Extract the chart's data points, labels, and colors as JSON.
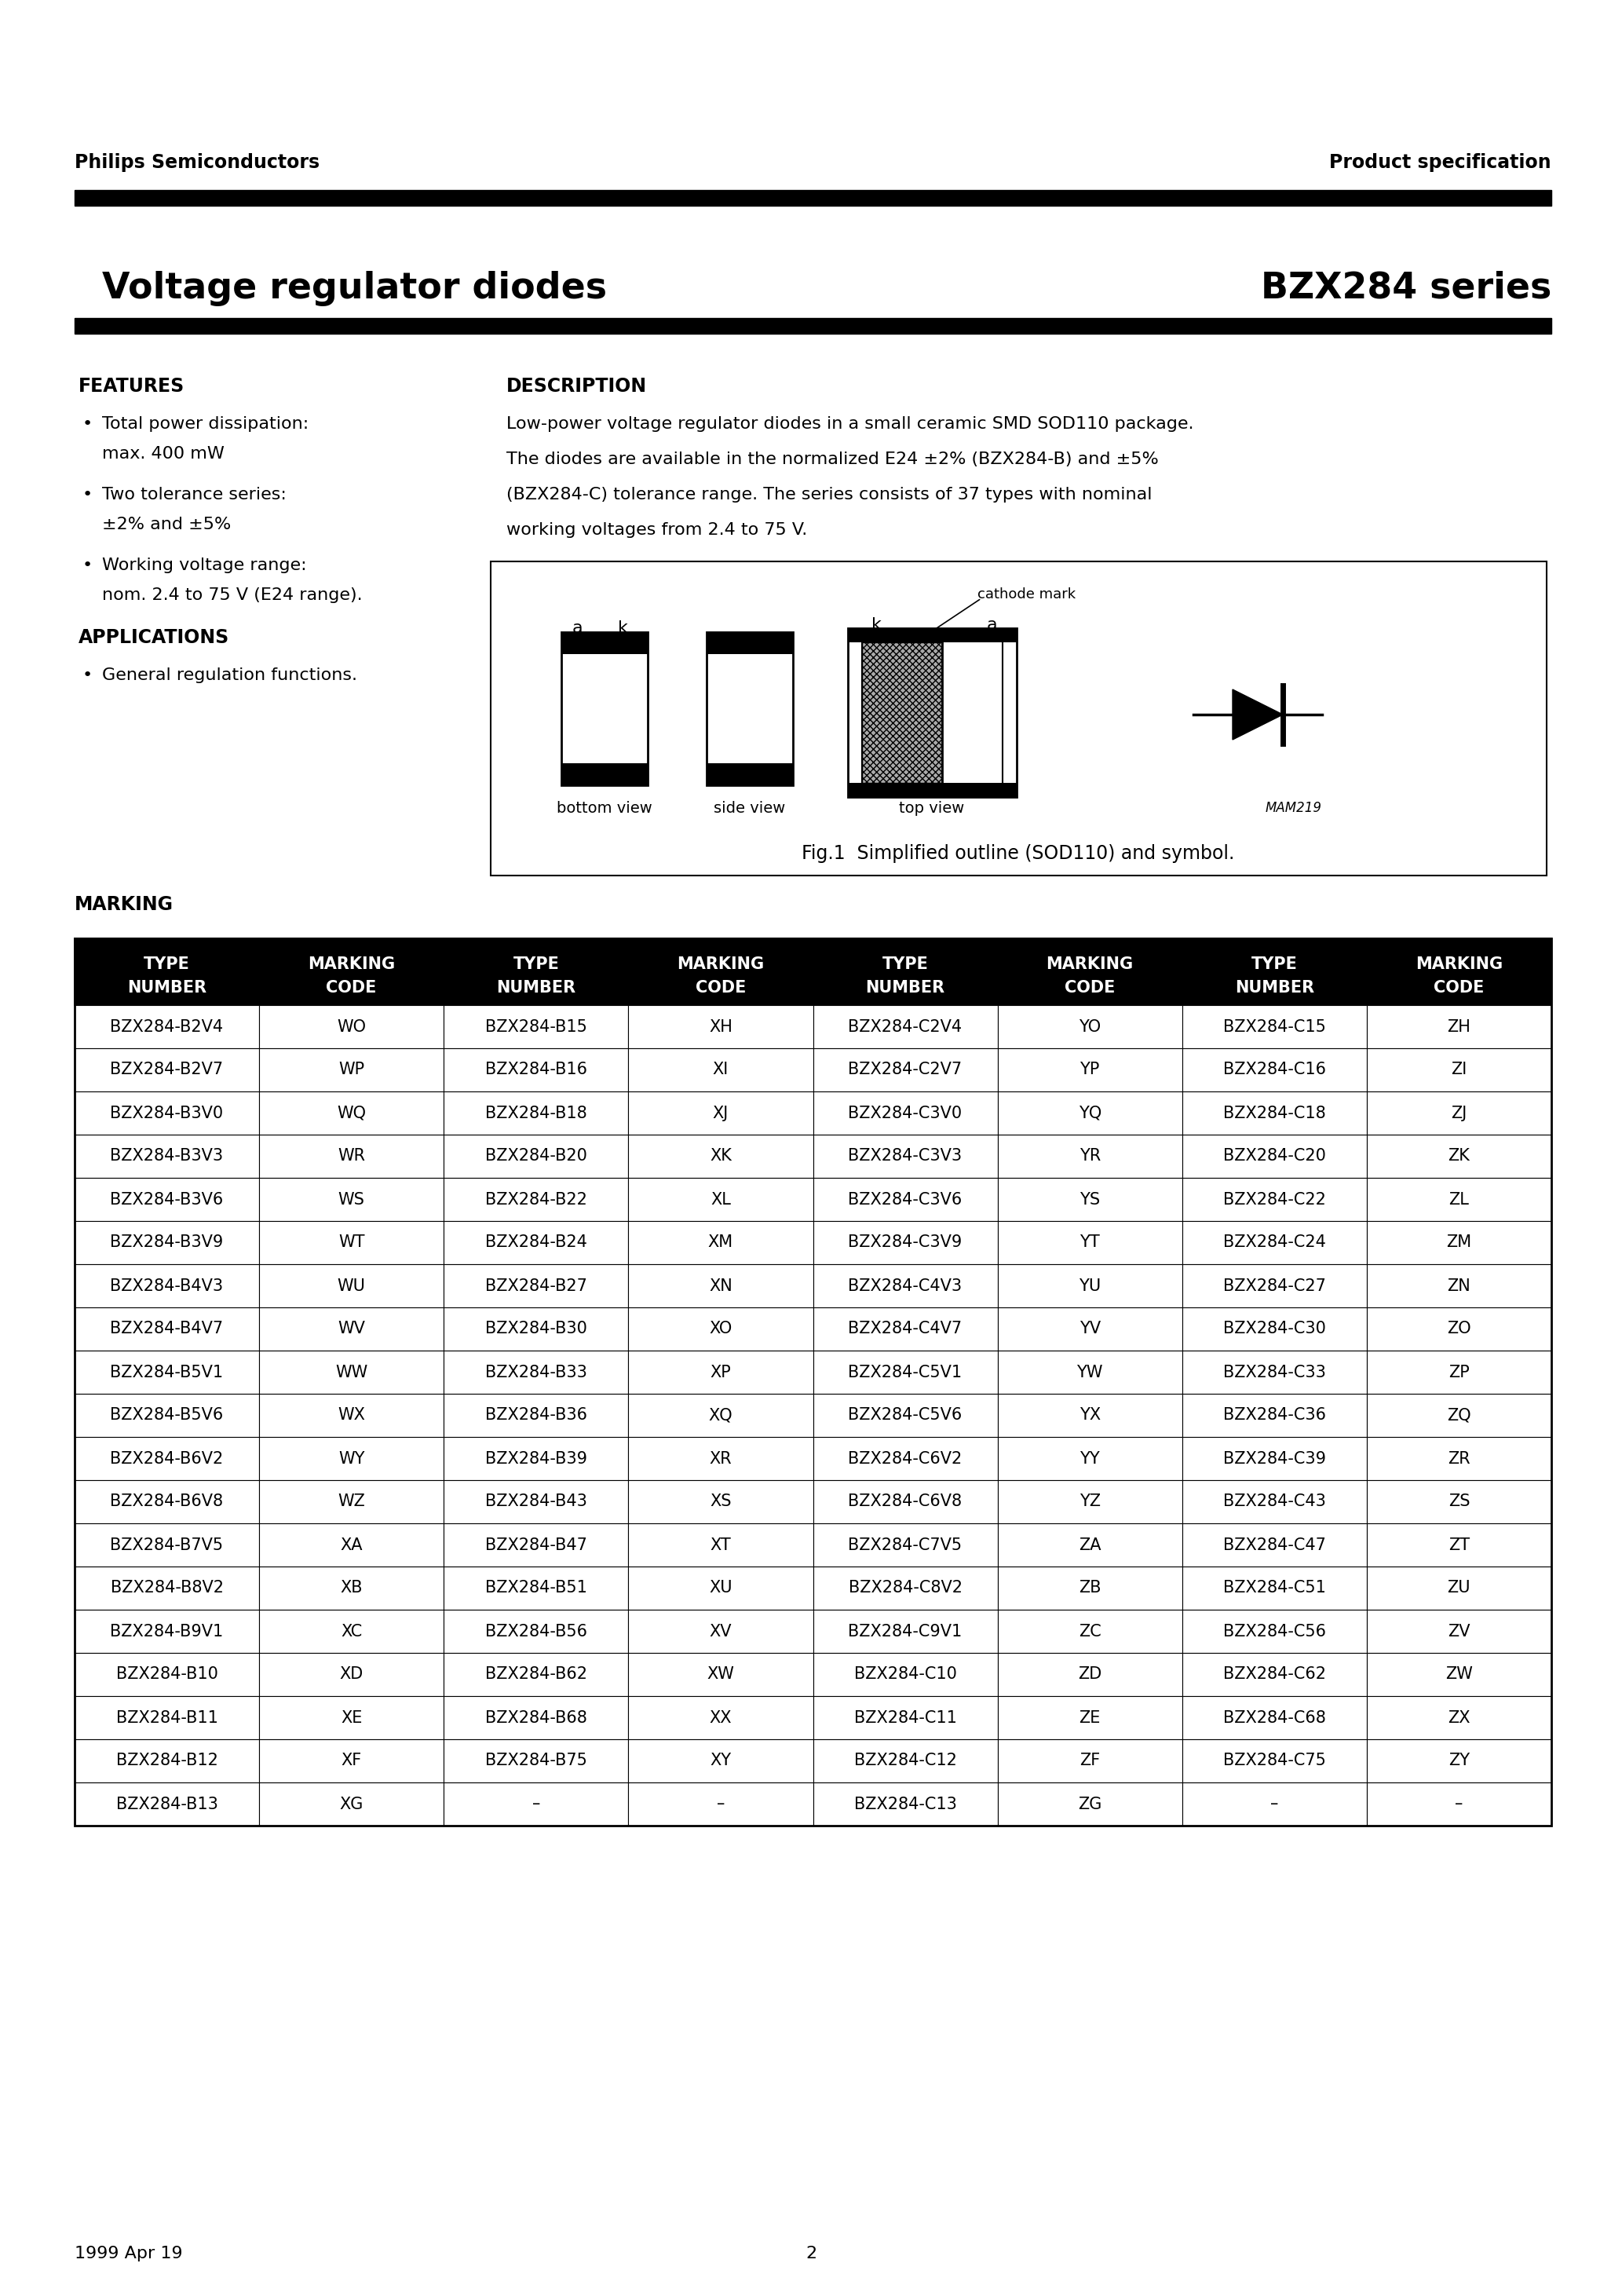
{
  "page_title_left": "Voltage regulator diodes",
  "page_title_right": "BZX284 series",
  "header_left": "Philips Semiconductors",
  "header_right": "Product specification",
  "features_title": "FEATURES",
  "feature_lines": [
    [
      "Total power dissipation:",
      "max. 400 mW"
    ],
    [
      "Two tolerance series:",
      "±2% and ±5%"
    ],
    [
      "Working voltage range:",
      "nom. 2.4 to 75 V (E24 range)."
    ]
  ],
  "applications_title": "APPLICATIONS",
  "application_lines": [
    "General regulation functions."
  ],
  "description_title": "DESCRIPTION",
  "description_lines": [
    "Low-power voltage regulator diodes in a small ceramic SMD SOD110 package.",
    "The diodes are available in the normalized E24 ±2% (BZX284-B) and ±5%",
    "(BZX284-C) tolerance range. The series consists of 37 types with nominal",
    "working voltages from 2.4 to 75 V."
  ],
  "fig_caption": "Fig.1  Simplified outline (SOD110) and symbol.",
  "marking_title": "MARKING",
  "table_headers": [
    "TYPE\nNUMBER",
    "MARKING\nCODE",
    "TYPE\nNUMBER",
    "MARKING\nCODE",
    "TYPE\nNUMBER",
    "MARKING\nCODE",
    "TYPE\nNUMBER",
    "MARKING\nCODE"
  ],
  "table_rows": [
    [
      "BZX284-B2V4",
      "WO",
      "BZX284-B15",
      "XH",
      "BZX284-C2V4",
      "YO",
      "BZX284-C15",
      "ZH"
    ],
    [
      "BZX284-B2V7",
      "WP",
      "BZX284-B16",
      "XI",
      "BZX284-C2V7",
      "YP",
      "BZX284-C16",
      "ZI"
    ],
    [
      "BZX284-B3V0",
      "WQ",
      "BZX284-B18",
      "XJ",
      "BZX284-C3V0",
      "YQ",
      "BZX284-C18",
      "ZJ"
    ],
    [
      "BZX284-B3V3",
      "WR",
      "BZX284-B20",
      "XK",
      "BZX284-C3V3",
      "YR",
      "BZX284-C20",
      "ZK"
    ],
    [
      "BZX284-B3V6",
      "WS",
      "BZX284-B22",
      "XL",
      "BZX284-C3V6",
      "YS",
      "BZX284-C22",
      "ZL"
    ],
    [
      "BZX284-B3V9",
      "WT",
      "BZX284-B24",
      "XM",
      "BZX284-C3V9",
      "YT",
      "BZX284-C24",
      "ZM"
    ],
    [
      "BZX284-B4V3",
      "WU",
      "BZX284-B27",
      "XN",
      "BZX284-C4V3",
      "YU",
      "BZX284-C27",
      "ZN"
    ],
    [
      "BZX284-B4V7",
      "WV",
      "BZX284-B30",
      "XO",
      "BZX284-C4V7",
      "YV",
      "BZX284-C30",
      "ZO"
    ],
    [
      "BZX284-B5V1",
      "WW",
      "BZX284-B33",
      "XP",
      "BZX284-C5V1",
      "YW",
      "BZX284-C33",
      "ZP"
    ],
    [
      "BZX284-B5V6",
      "WX",
      "BZX284-B36",
      "XQ",
      "BZX284-C5V6",
      "YX",
      "BZX284-C36",
      "ZQ"
    ],
    [
      "BZX284-B6V2",
      "WY",
      "BZX284-B39",
      "XR",
      "BZX284-C6V2",
      "YY",
      "BZX284-C39",
      "ZR"
    ],
    [
      "BZX284-B6V8",
      "WZ",
      "BZX284-B43",
      "XS",
      "BZX284-C6V8",
      "YZ",
      "BZX284-C43",
      "ZS"
    ],
    [
      "BZX284-B7V5",
      "XA",
      "BZX284-B47",
      "XT",
      "BZX284-C7V5",
      "ZA",
      "BZX284-C47",
      "ZT"
    ],
    [
      "BZX284-B8V2",
      "XB",
      "BZX284-B51",
      "XU",
      "BZX284-C8V2",
      "ZB",
      "BZX284-C51",
      "ZU"
    ],
    [
      "BZX284-B9V1",
      "XC",
      "BZX284-B56",
      "XV",
      "BZX284-C9V1",
      "ZC",
      "BZX284-C56",
      "ZV"
    ],
    [
      "BZX284-B10",
      "XD",
      "BZX284-B62",
      "XW",
      "BZX284-C10",
      "ZD",
      "BZX284-C62",
      "ZW"
    ],
    [
      "BZX284-B11",
      "XE",
      "BZX284-B68",
      "XX",
      "BZX284-C11",
      "ZE",
      "BZX284-C68",
      "ZX"
    ],
    [
      "BZX284-B12",
      "XF",
      "BZX284-B75",
      "XY",
      "BZX284-C12",
      "ZF",
      "BZX284-C75",
      "ZY"
    ],
    [
      "BZX284-B13",
      "XG",
      "–",
      "–",
      "BZX284-C13",
      "ZG",
      "–",
      "–"
    ]
  ],
  "footer_left": "1999 Apr 19",
  "footer_center": "2",
  "bg": "#ffffff",
  "fg": "#000000"
}
